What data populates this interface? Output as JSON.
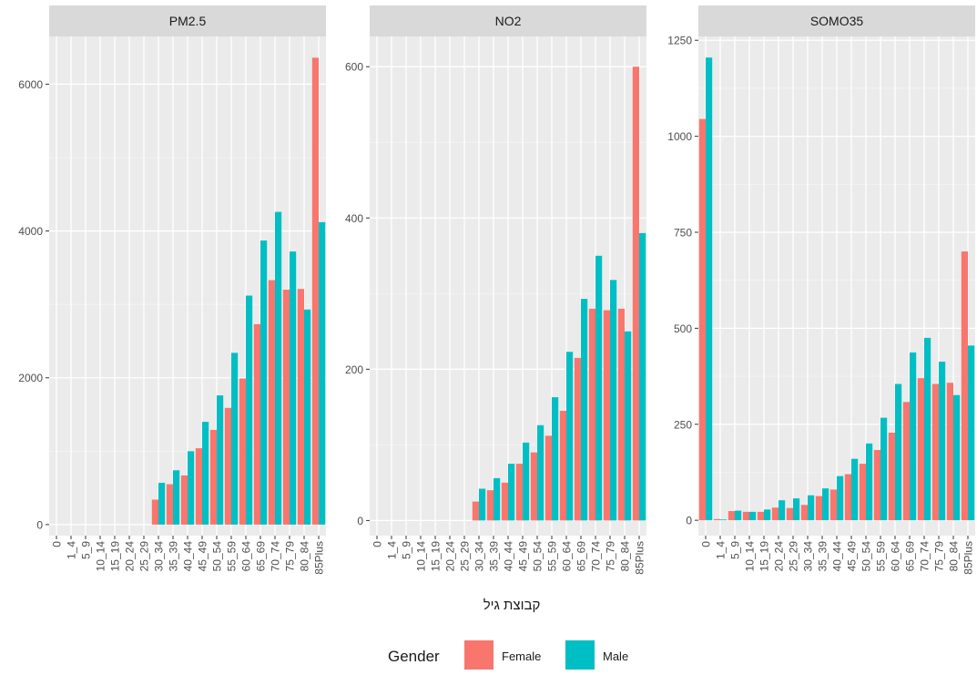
{
  "chart_data": {
    "type": "bar",
    "categories": [
      "0",
      "1_4",
      "5_9",
      "10_14",
      "15_19",
      "20_24",
      "25_29",
      "30_34",
      "35_39",
      "40_44",
      "45_49",
      "50_54",
      "55_59",
      "60_64",
      "65_69",
      "70_74",
      "75_79",
      "80_84",
      "85Plus"
    ],
    "xlabel": "קבוצת גיל",
    "ylabel": "",
    "grid": true,
    "legend": {
      "title": "Gender",
      "position": "bottom",
      "items": [
        {
          "name": "Female",
          "color": "#F8766D"
        },
        {
          "name": "Male",
          "color": "#00BFC4"
        }
      ]
    },
    "panels": [
      {
        "title": "PM2.5",
        "ylim": [
          -150,
          6650
        ],
        "yticks": [
          0,
          2000,
          4000,
          6000
        ],
        "series": [
          {
            "name": "Female",
            "values": [
              0,
              0,
              0,
              0,
              0,
              0,
              0,
              340,
              550,
              670,
              1040,
              1290,
              1590,
              1990,
              2730,
              3330,
              3200,
              3210,
              6360
            ]
          },
          {
            "name": "Male",
            "values": [
              0,
              0,
              0,
              0,
              0,
              0,
              0,
              570,
              740,
              1000,
              1400,
              1760,
              2340,
              3120,
              3870,
              4260,
              3720,
              2930,
              4120
            ]
          }
        ]
      },
      {
        "title": "NO2",
        "ylim": [
          -20,
          640
        ],
        "yticks": [
          0,
          200,
          400,
          600
        ],
        "series": [
          {
            "name": "Female",
            "values": [
              0,
              0,
              0,
              0,
              0,
              0,
              0,
              25,
              40,
              50,
              75,
              90,
              112,
              145,
              215,
              280,
              278,
              280,
              600
            ]
          },
          {
            "name": "Male",
            "values": [
              0,
              0,
              0,
              0,
              0,
              0,
              0,
              42,
              56,
              75,
              103,
              126,
              163,
              223,
              293,
              350,
              318,
              250,
              380
            ]
          }
        ]
      },
      {
        "title": "SOMO35",
        "ylim": [
          -40,
          1260
        ],
        "yticks": [
          0,
          250,
          500,
          750,
          1000,
          1250
        ],
        "series": [
          {
            "name": "Female",
            "values": [
              1045,
              3,
              24,
              22,
              22,
              33,
              32,
              40,
              63,
              80,
              120,
              147,
              183,
              228,
              308,
              370,
              355,
              358,
              700
            ]
          },
          {
            "name": "Male",
            "values": [
              1205,
              2,
              25,
              22,
              28,
              52,
              57,
              65,
              83,
              115,
              160,
              200,
              267,
              355,
              437,
              475,
              413,
              326,
              455
            ]
          }
        ]
      }
    ]
  }
}
